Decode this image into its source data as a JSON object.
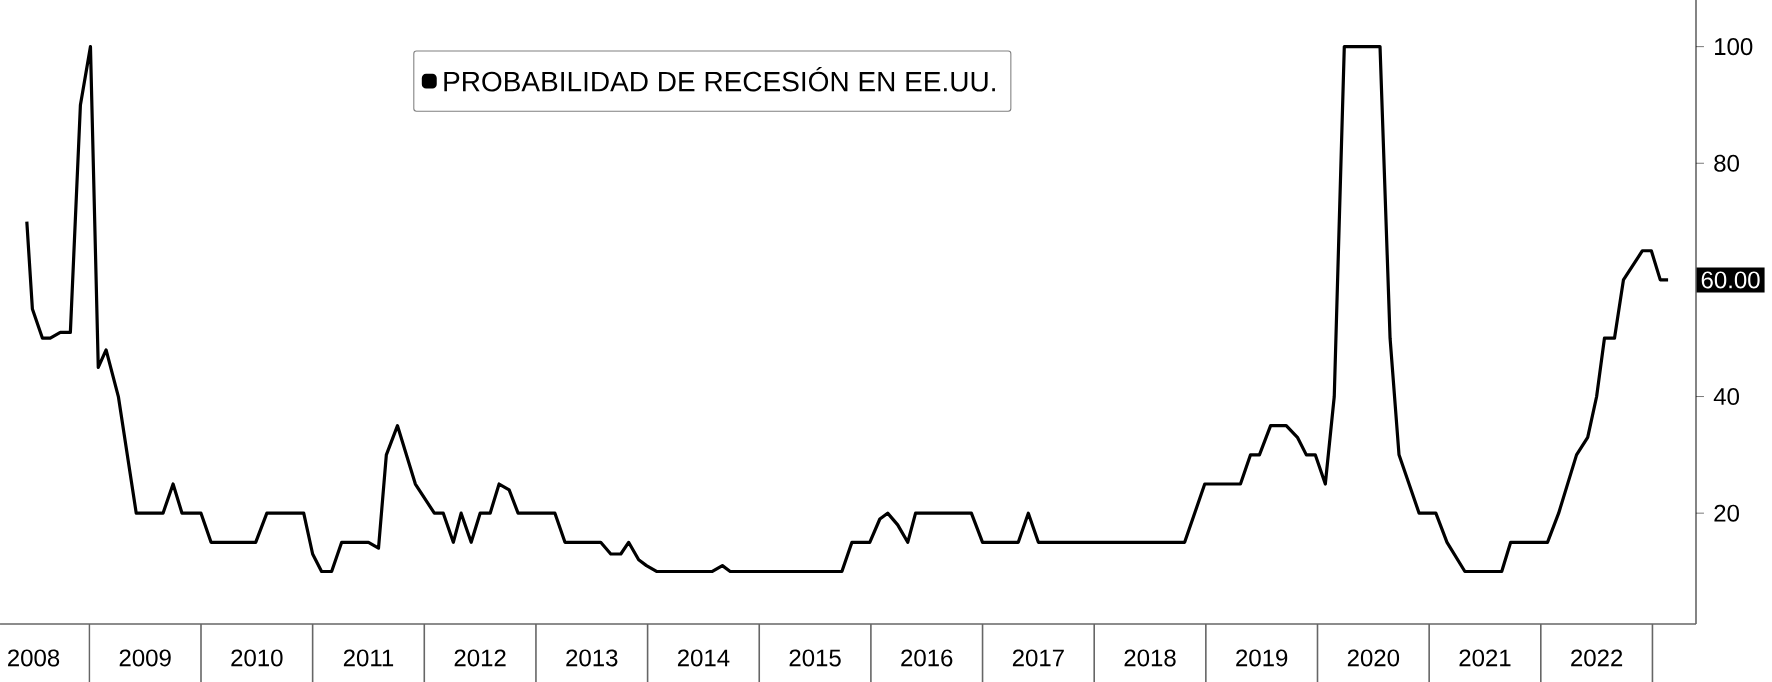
{
  "chart_data": {
    "type": "line",
    "x": [
      2008.44,
      2008.49,
      2008.58,
      2008.65,
      2008.74,
      2008.83,
      2008.92,
      2009.01,
      2009.08,
      2009.15,
      2009.26,
      2009.42,
      2009.66,
      2009.75,
      2009.83,
      2010.0,
      2010.09,
      2010.49,
      2010.59,
      2010.92,
      2011.0,
      2011.08,
      2011.17,
      2011.26,
      2011.5,
      2011.59,
      2011.66,
      2011.76,
      2011.92,
      2012.09,
      2012.17,
      2012.26,
      2012.33,
      2012.42,
      2012.5,
      2012.59,
      2012.67,
      2012.76,
      2012.84,
      2013.17,
      2013.26,
      2013.58,
      2013.67,
      2013.76,
      2013.83,
      2013.92,
      2013.99,
      2014.08,
      2014.58,
      2014.67,
      2014.74,
      2015.74,
      2015.83,
      2015.99,
      2016.08,
      2016.15,
      2016.24,
      2016.33,
      2016.4,
      2016.9,
      2017.0,
      2017.32,
      2017.41,
      2017.5,
      2018.81,
      2018.99,
      2019.31,
      2019.4,
      2019.48,
      2019.58,
      2019.72,
      2019.82,
      2019.9,
      2019.98,
      2020.07,
      2020.15,
      2020.24,
      2020.56,
      2020.65,
      2020.73,
      2020.91,
      2021.06,
      2021.16,
      2021.32,
      2021.65,
      2021.73,
      2022.06,
      2022.16,
      2022.32,
      2022.42,
      2022.5,
      2022.57,
      2022.66,
      2022.74,
      2022.91,
      2022.99,
      2023.07,
      2023.14
    ],
    "series": [
      {
        "name": "PROBABILIDAD DE RECESIÓN EN EE.UU.",
        "color": "#000000",
        "values": [
          70,
          55,
          50,
          50,
          51,
          51,
          90,
          100,
          45,
          48,
          40,
          20,
          20,
          25,
          20,
          20,
          15,
          15,
          20,
          20,
          13,
          10,
          10,
          15,
          15,
          14,
          30,
          35,
          25,
          20,
          20,
          15,
          20,
          15,
          20,
          20,
          25,
          24,
          20,
          20,
          15,
          15,
          13,
          13,
          15,
          12,
          11,
          10,
          10,
          11,
          10,
          10,
          15,
          15,
          19,
          20,
          18,
          15,
          20,
          20,
          15,
          15,
          20,
          15,
          15,
          25,
          25,
          30,
          30,
          35,
          35,
          33,
          30,
          30,
          25,
          40,
          100,
          100,
          50,
          30,
          20,
          20,
          15,
          10,
          10,
          15,
          15,
          20,
          30,
          33,
          40,
          50,
          50,
          60,
          65,
          65,
          60,
          60
        ]
      }
    ],
    "xlim": [
      2008.2,
      2023.39
    ],
    "xticks": [
      {
        "value": 2008.5,
        "label": "2008"
      },
      {
        "value": 2009.5,
        "label": "2009"
      },
      {
        "value": 2010.5,
        "label": "2010"
      },
      {
        "value": 2011.5,
        "label": "2011"
      },
      {
        "value": 2012.5,
        "label": "2012"
      },
      {
        "value": 2013.5,
        "label": "2013"
      },
      {
        "value": 2014.5,
        "label": "2014"
      },
      {
        "value": 2015.5,
        "label": "2015"
      },
      {
        "value": 2016.5,
        "label": "2016"
      },
      {
        "value": 2017.5,
        "label": "2017"
      },
      {
        "value": 2018.5,
        "label": "2018"
      },
      {
        "value": 2019.5,
        "label": "2019"
      },
      {
        "value": 2020.5,
        "label": "2020"
      },
      {
        "value": 2021.5,
        "label": "2021"
      },
      {
        "value": 2022.5,
        "label": "2022"
      }
    ],
    "ylim": [
      1,
      108
    ],
    "yticks": [
      20,
      40,
      80,
      100
    ],
    "legend": "top",
    "grid": false,
    "marker": "none",
    "line_style": "solid",
    "annotations": [
      {
        "text": "60.00",
        "y": 60
      }
    ]
  }
}
